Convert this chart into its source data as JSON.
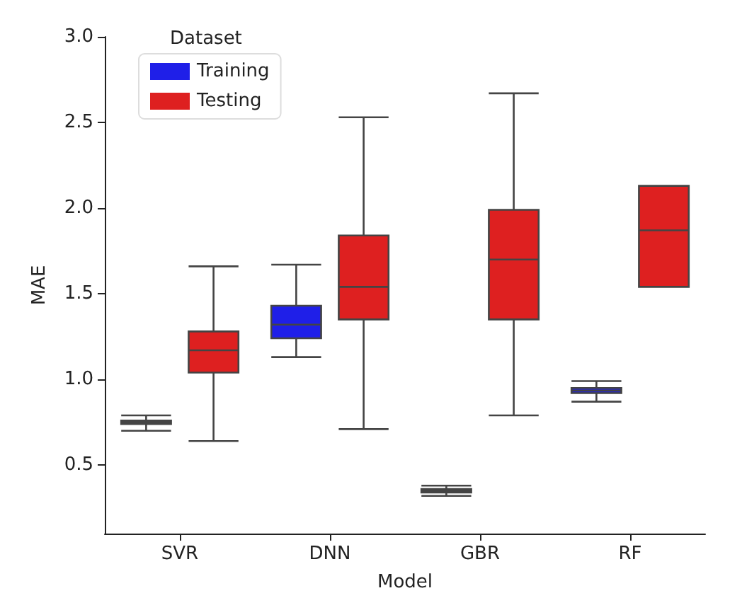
{
  "chart_data": {
    "type": "box",
    "xlabel": "Model",
    "ylabel": "MAE",
    "legend_title": "Dataset",
    "legend": "top left",
    "grid": false,
    "categories": [
      "SVR",
      "DNN",
      "GBR",
      "RF"
    ],
    "ylim": [
      0.1,
      3.0
    ],
    "yticks": [
      0.5,
      {
        "value": 1,
        "label": "1.0"
      },
      1.5,
      {
        "value": 2,
        "label": "2.0"
      },
      2.5,
      {
        "value": 3,
        "label": "3.0"
      }
    ],
    "series": [
      {
        "name": "Training",
        "color": "#1f1fe8",
        "boxes": [
          {
            "low": 0.7,
            "q1": 0.74,
            "median": 0.75,
            "q3": 0.76,
            "high": 0.79
          },
          {
            "low": 1.13,
            "q1": 1.24,
            "median": 1.32,
            "q3": 1.43,
            "high": 1.67
          },
          {
            "low": 0.32,
            "q1": 0.34,
            "median": 0.35,
            "q3": 0.36,
            "high": 0.38
          },
          {
            "low": 0.87,
            "q1": 0.92,
            "median": 0.935,
            "q3": 0.95,
            "high": 0.99
          }
        ]
      },
      {
        "name": "Testing",
        "color": "#de2020",
        "boxes": [
          {
            "low": 0.64,
            "q1": 1.04,
            "median": 1.17,
            "q3": 1.28,
            "high": 1.66
          },
          {
            "low": 0.71,
            "q1": 1.35,
            "median": 1.54,
            "q3": 1.84,
            "high": 2.53
          },
          {
            "low": 0.79,
            "q1": 1.35,
            "median": 1.7,
            "q3": 1.99,
            "high": 2.67
          },
          {
            "low": 1.54,
            "q1": 1.54,
            "median": 1.87,
            "q3": 2.13,
            "high": 2.13
          }
        ]
      }
    ]
  }
}
